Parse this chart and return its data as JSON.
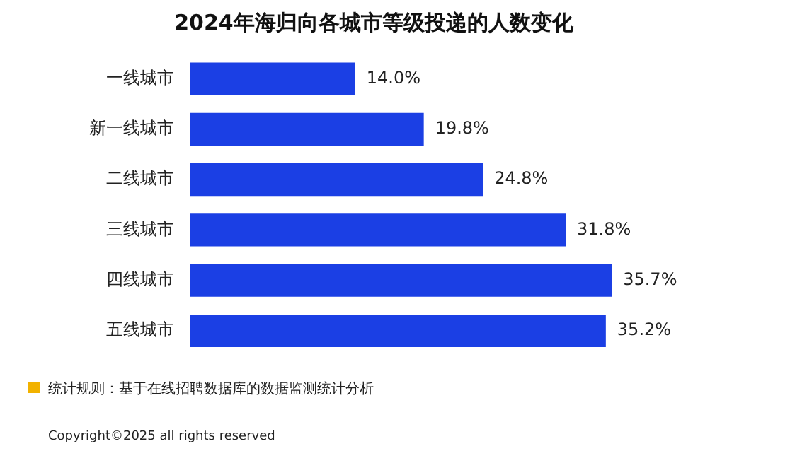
{
  "chart_data": {
    "type": "bar",
    "orientation": "horizontal",
    "title": "2024年海归向各城市等级投递的人数变化",
    "categories": [
      "一线城市",
      "新一线城市",
      "二线城市",
      "三线城市",
      "四线城市",
      "五线城市"
    ],
    "values": [
      14.0,
      19.8,
      24.8,
      31.8,
      35.7,
      35.2
    ],
    "value_labels": [
      "14.0%",
      "19.8%",
      "24.8%",
      "31.8%",
      "35.7%",
      "35.2%"
    ],
    "color": "#1b3fe4",
    "legend": false,
    "tick_labels": "y",
    "annotations": [
      "统计规则：基于在线招聘数据库的数据监测统计分析",
      "Copyright©2025 all rights reserved"
    ]
  }
}
